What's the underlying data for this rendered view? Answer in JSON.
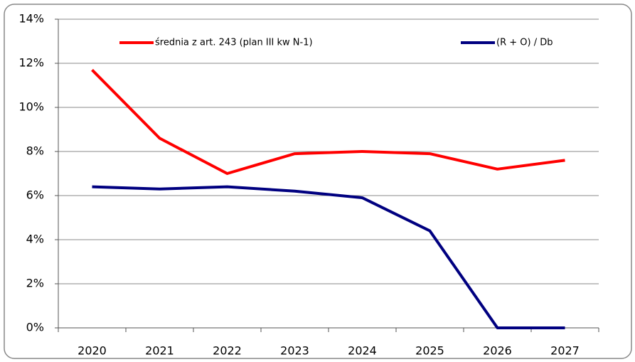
{
  "chart_data": {
    "type": "line",
    "categories": [
      "2020",
      "2021",
      "2022",
      "2023",
      "2024",
      "2025",
      "2026",
      "2027"
    ],
    "series": [
      {
        "name": "średnia z art. 243 (plan III kw N-1)",
        "color": "#ff0000",
        "values": [
          11.7,
          8.6,
          7.0,
          7.9,
          8.0,
          7.9,
          7.2,
          7.6
        ]
      },
      {
        "name": "(R + O) / Db",
        "color": "#000080",
        "values": [
          6.4,
          6.3,
          6.4,
          6.2,
          5.9,
          4.4,
          0,
          0
        ]
      }
    ],
    "ylim": [
      0,
      14
    ],
    "yticks": [
      {
        "value": 0,
        "label": "0%"
      },
      {
        "value": 2,
        "label": "2%"
      },
      {
        "value": 4,
        "label": "4%"
      },
      {
        "value": 6,
        "label": "6%"
      },
      {
        "value": 8,
        "label": "8%"
      },
      {
        "value": 10,
        "label": "10%"
      },
      {
        "value": 12,
        "label": "12%"
      },
      {
        "value": 14,
        "label": "14%"
      }
    ],
    "grid": true,
    "legend": "top"
  }
}
